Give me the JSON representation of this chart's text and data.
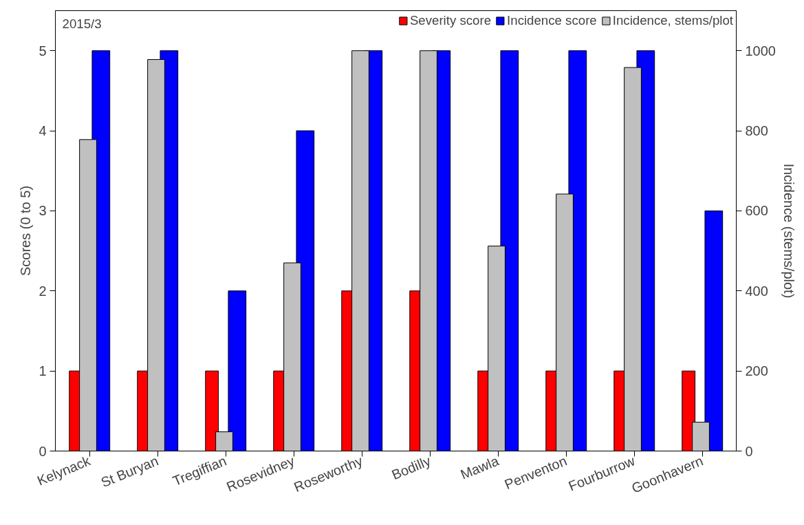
{
  "chart_data": {
    "type": "bar",
    "ylabel": "Scores (0 to 5)",
    "y2label": "Incidence (stems/plot)",
    "annotations": [
      "2015/3"
    ],
    "categories": [
      "Kelynack",
      "St Buryan",
      "Tregiffian",
      "Rosevidney",
      "Roseworthy",
      "Bodilly",
      "Mawla",
      "Penventon",
      "Fourburrow",
      "Goonhavern"
    ],
    "series": [
      {
        "name": "Severity score",
        "color": "#ff0000",
        "values": [
          1,
          1,
          1,
          1,
          2,
          2,
          1,
          1,
          1,
          1
        ]
      },
      {
        "name": "Incidence score",
        "color": "#0000ff",
        "values": [
          5,
          5,
          2,
          4,
          5,
          5,
          5,
          5,
          5,
          3
        ]
      },
      {
        "name": "Incidence, stems/plot",
        "color": "#c0c0c0",
        "axis": "y2",
        "values": [
          778,
          978,
          48,
          470,
          1000,
          1000,
          512,
          642,
          958,
          72
        ]
      }
    ],
    "ylim": [
      0,
      5.5
    ],
    "yticks": [
      0,
      1,
      2,
      3,
      4,
      5
    ],
    "y2lim": [
      0,
      1100
    ],
    "y2ticks": [
      0,
      200,
      400,
      600,
      800,
      1000
    ],
    "grid": false,
    "legend": "top right"
  }
}
